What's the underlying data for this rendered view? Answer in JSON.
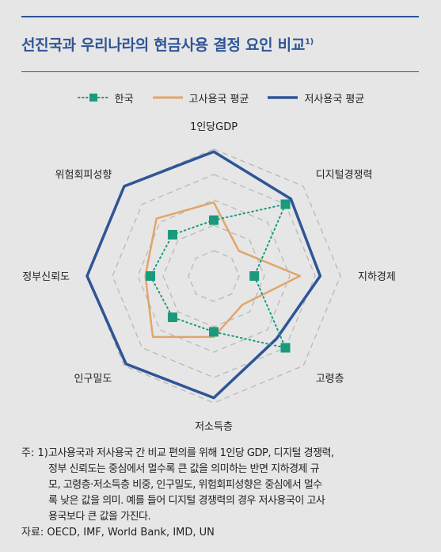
{
  "title": "선진국과 우리나라의 현금사용 결정 요인 비교",
  "title_sup": "1)",
  "chart_data": {
    "type": "radar",
    "axes": [
      "1인당GDP",
      "디지털경쟁력",
      "지하경제",
      "고령층",
      "저소득층",
      "인구밀도",
      "정부신뢰도",
      "위험회피성향"
    ],
    "rings": 5,
    "range": [
      0,
      5
    ],
    "series": [
      {
        "name": "한국",
        "values": [
          2.2,
          4.0,
          1.6,
          4.0,
          2.2,
          2.3,
          2.5,
          2.3
        ],
        "color": "#1a9a7c",
        "style": "dotted-square"
      },
      {
        "name": "고사용국 평균",
        "values": [
          2.9,
          1.4,
          3.4,
          1.6,
          2.4,
          3.4,
          2.7,
          3.2
        ],
        "color": "#e2a56a",
        "style": "solid"
      },
      {
        "name": "저사용국 평균",
        "values": [
          4.9,
          4.3,
          4.2,
          3.5,
          4.8,
          4.9,
          5.0,
          5.0
        ],
        "color": "#2e5596",
        "style": "solid-thick"
      }
    ]
  },
  "notes": {
    "prefix": "주: 1)",
    "lines": [
      "고사용국과 저사용국 간 비교 편의를 위해 1인당 GDP, 디지털 경쟁력,",
      "정부 신뢰도는 중심에서 멀수록 큰 값을 의미하는 반면 지하경제 규",
      "모, 고령층·저소득층 비중, 인구밀도, 위험회피성향은 중심에서 멀수",
      "록 낮은 값을 의미. 예를 들어 디지털 경쟁력의 경우 저사용국이 고사",
      "용국보다 큰 값을 가진다."
    ],
    "source": "자료: OECD, IMF, World Bank, IMD, UN"
  }
}
